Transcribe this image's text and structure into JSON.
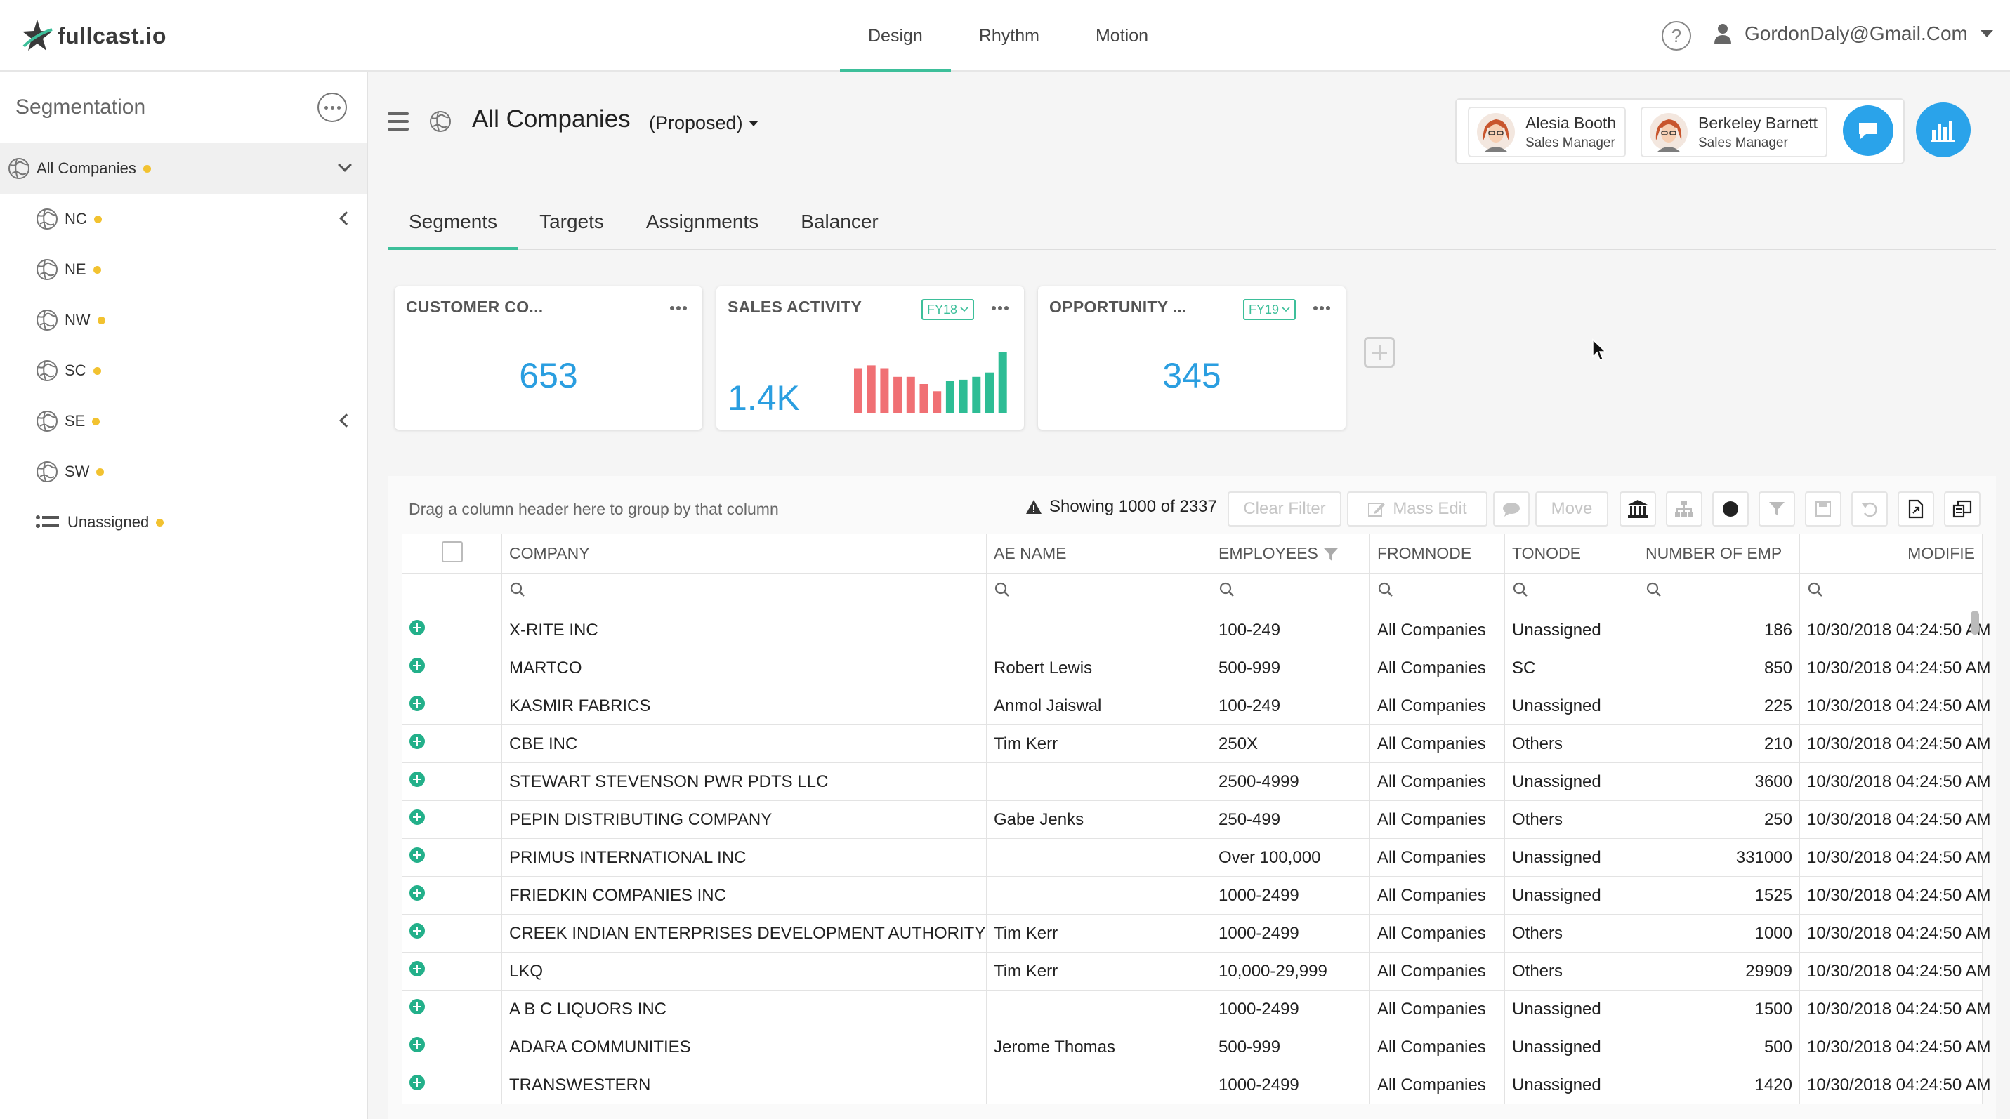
{
  "app": {
    "logo": "fullcast.io"
  },
  "topnav": [
    {
      "label": "Design",
      "active": true
    },
    {
      "label": "Rhythm",
      "active": false
    },
    {
      "label": "Motion",
      "active": false
    }
  ],
  "help_glyph": "?",
  "user": {
    "email": "GordonDaly@Gmail.Com"
  },
  "sidebar": {
    "title": "Segmentation",
    "root": "All Companies",
    "items": [
      "NC",
      "NE",
      "NW",
      "SC",
      "SE",
      "SW"
    ],
    "unassigned": "Unassigned"
  },
  "header": {
    "title": "All Companies",
    "status": "(Proposed)"
  },
  "collaborators": [
    {
      "name": "Alesia Booth",
      "role": "Sales Manager"
    },
    {
      "name": "Berkeley Barnett",
      "role": "Sales Manager"
    }
  ],
  "tabs": [
    "Segments",
    "Targets",
    "Assignments",
    "Balancer"
  ],
  "cards": [
    {
      "title": "CUSTOMER CO...",
      "value": "653"
    },
    {
      "title": "SALES ACTIVITY",
      "fy": "FY18",
      "value": "1.4K"
    },
    {
      "title": "OPPORTUNITY ...",
      "fy": "FY19",
      "value": "345"
    }
  ],
  "sales_activity_bars": {
    "values": [
      62,
      66,
      62,
      50,
      50,
      40,
      30,
      44,
      46,
      50,
      56,
      84
    ],
    "colors": [
      "#f07074",
      "#f07074",
      "#f07074",
      "#f07074",
      "#f07074",
      "#f07074",
      "#f07074",
      "#2ebd95",
      "#2ebd95",
      "#2ebd95",
      "#2ebd95",
      "#2ebd95"
    ]
  },
  "grid": {
    "drag_hint": "Drag a column header here to group by that column",
    "showing": "Showing 1000 of 2337",
    "buttons": {
      "clear_filter": "Clear Filter",
      "mass_edit": "Mass Edit",
      "move": "Move"
    },
    "columns": [
      "COMPANY",
      "AE NAME",
      "EMPLOYEES",
      "FROMNODE",
      "TONODE",
      "NUMBER OF EMP",
      "MODIFIE"
    ],
    "rows": [
      [
        "X-RITE INC",
        "",
        "100-249",
        "All Companies",
        "Unassigned",
        "186",
        "10/30/2018 04:24:50 AM"
      ],
      [
        "MARTCO",
        "Robert Lewis",
        "500-999",
        "All Companies",
        "SC",
        "850",
        "10/30/2018 04:24:50 AM"
      ],
      [
        "KASMIR FABRICS",
        "Anmol Jaiswal",
        "100-249",
        "All Companies",
        "Unassigned",
        "225",
        "10/30/2018 04:24:50 AM"
      ],
      [
        "CBE INC",
        "Tim Kerr",
        "250X",
        "All Companies",
        "Others",
        "210",
        "10/30/2018 04:24:50 AM"
      ],
      [
        "STEWART STEVENSON PWR PDTS LLC",
        "",
        "2500-4999",
        "All Companies",
        "Unassigned",
        "3600",
        "10/30/2018 04:24:50 AM"
      ],
      [
        "PEPIN DISTRIBUTING COMPANY",
        "Gabe Jenks",
        "250-499",
        "All Companies",
        "Others",
        "250",
        "10/30/2018 04:24:50 AM"
      ],
      [
        "PRIMUS INTERNATIONAL INC",
        "",
        "Over 100,000",
        "All Companies",
        "Unassigned",
        "331000",
        "10/30/2018 04:24:50 AM"
      ],
      [
        "FRIEDKIN COMPANIES INC",
        "",
        "1000-2499",
        "All Companies",
        "Unassigned",
        "1525",
        "10/30/2018 04:24:50 AM"
      ],
      [
        "CREEK INDIAN ENTERPRISES DEVELOPMENT AUTHORITY",
        "Tim Kerr",
        "1000-2499",
        "All Companies",
        "Others",
        "1000",
        "10/30/2018 04:24:50 AM"
      ],
      [
        "LKQ",
        "Tim Kerr",
        "10,000-29,999",
        "All Companies",
        "Others",
        "29909",
        "10/30/2018 04:24:50 AM"
      ],
      [
        "A B C LIQUORS INC",
        "",
        "1000-2499",
        "All Companies",
        "Unassigned",
        "1500",
        "10/30/2018 04:24:50 AM"
      ],
      [
        "ADARA COMMUNITIES",
        "Jerome Thomas",
        "500-999",
        "All Companies",
        "Unassigned",
        "500",
        "10/30/2018 04:24:50 AM"
      ],
      [
        "TRANSWESTERN",
        "",
        "1000-2499",
        "All Companies",
        "Unassigned",
        "1420",
        "10/30/2018 04:24:50 AM"
      ]
    ]
  },
  "colors": {
    "accent": "#3dbf9a",
    "value_blue": "#2a9ee0",
    "button_blue": "#2aa3ea",
    "dot_yellow": "#f2c230"
  }
}
